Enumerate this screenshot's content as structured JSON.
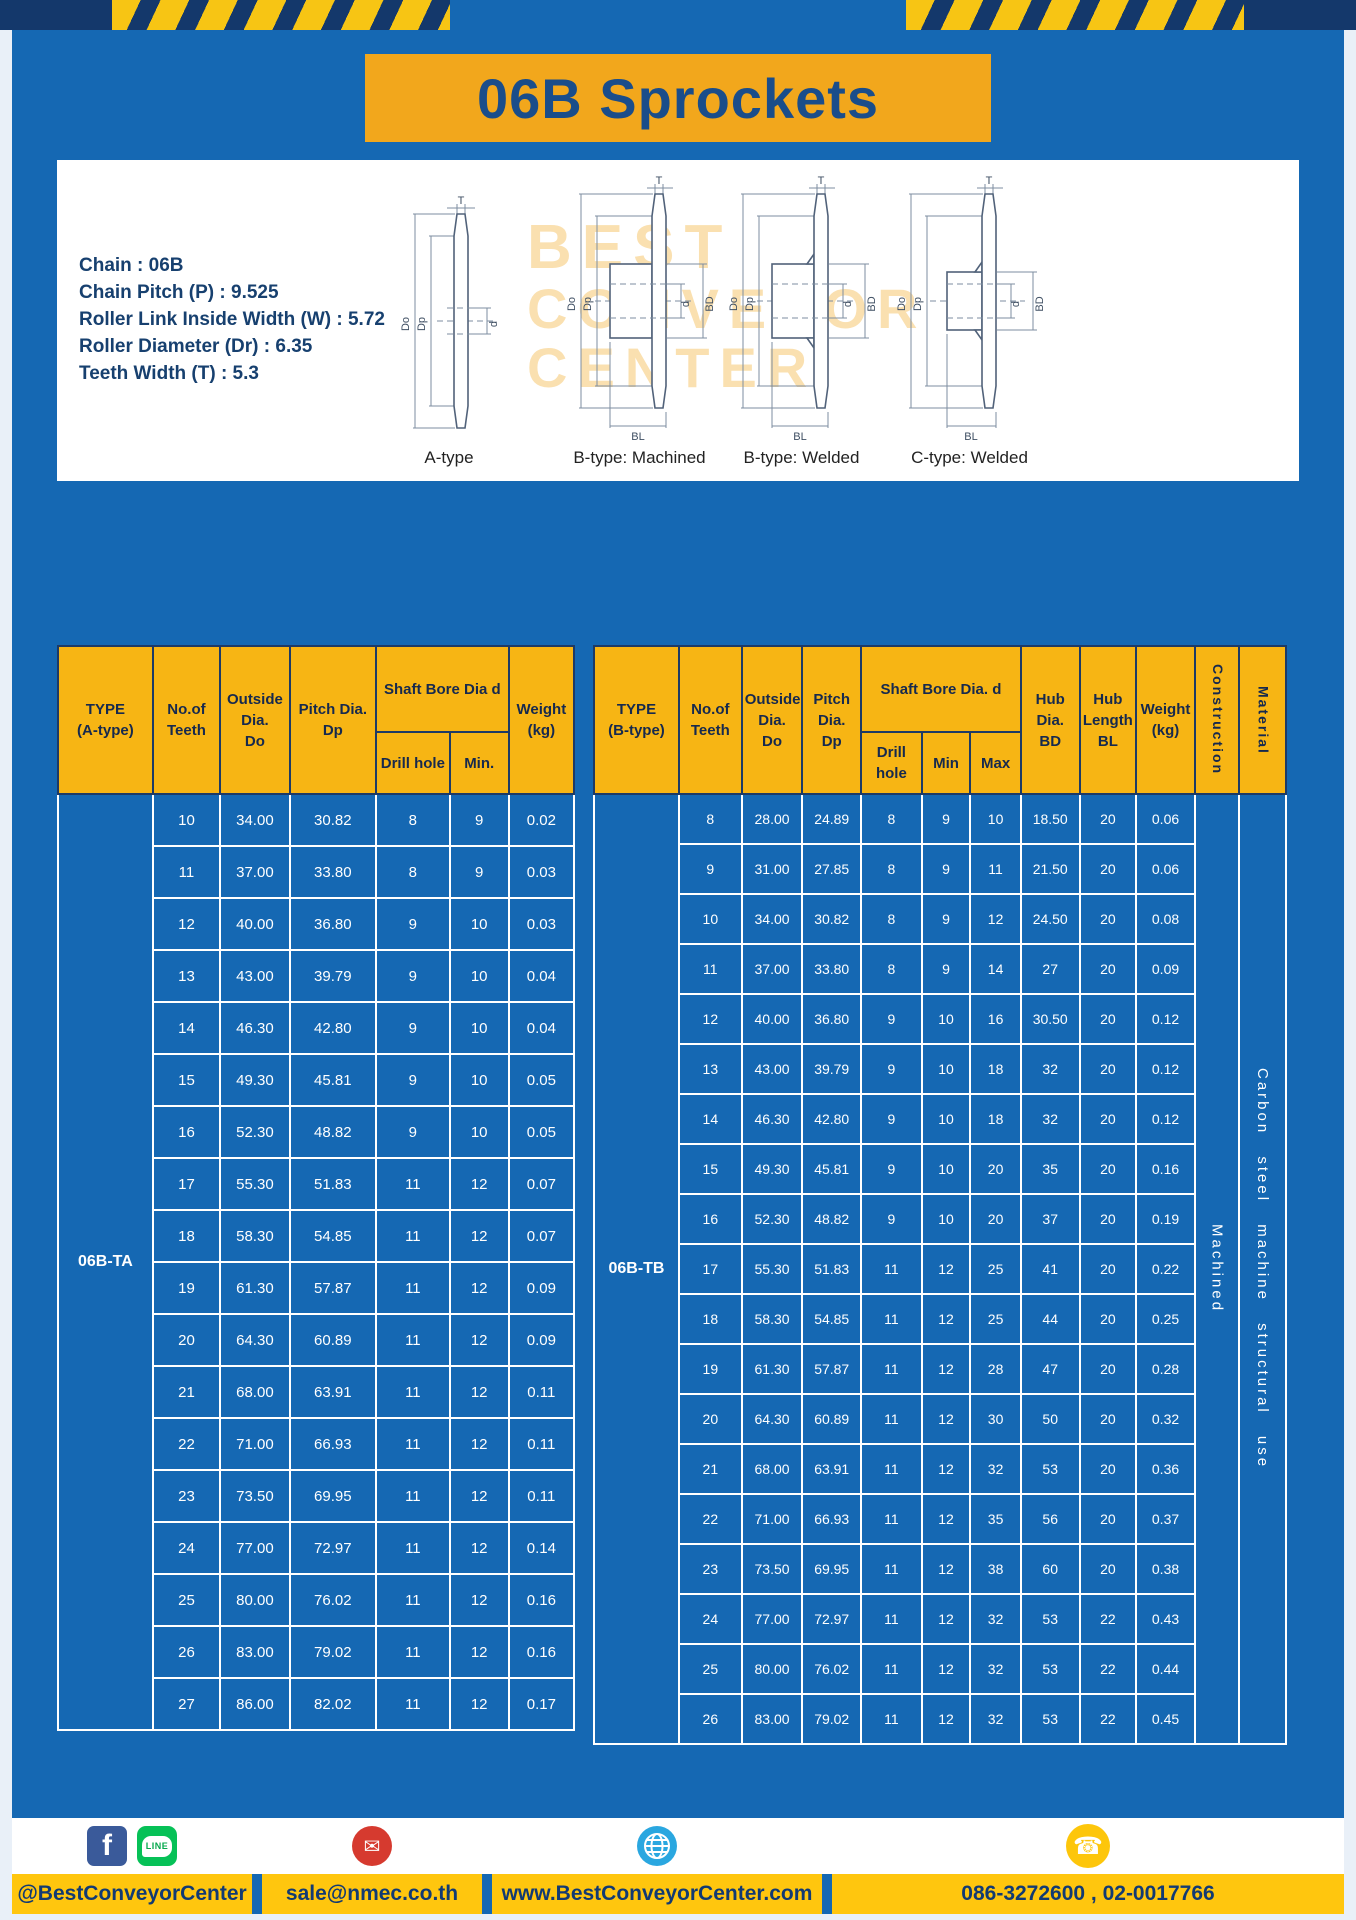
{
  "page": {
    "title": "06B Sprockets"
  },
  "specs": [
    "Chain  :  06B",
    "Chain Pitch (P)  :  9.525",
    "Roller Link Inside Width (W)  :  5.72",
    "Roller Diameter (Dr)  :  6.35",
    "Teeth Width (T)  :  5.3"
  ],
  "watermark": [
    "BEST",
    "CONVEYOR",
    "CENTER"
  ],
  "diagrams": [
    {
      "label": "A-type",
      "dims": {
        "t": "T",
        "do": "Do",
        "dp": "Dp",
        "d": "d"
      }
    },
    {
      "label": "B-type: Machined",
      "dims": {
        "t": "T",
        "do": "Do",
        "dp": "Dp",
        "d": "d",
        "bd": "BD",
        "bl": "BL"
      }
    },
    {
      "label": "B-type: Welded",
      "dims": {
        "t": "T",
        "do": "Do",
        "dp": "Dp",
        "d": "d",
        "bd": "BD",
        "bl": "BL"
      }
    },
    {
      "label": "C-type: Welded",
      "dims": {
        "t": "T",
        "do": "Do",
        "dp": "Dp",
        "d": "d",
        "bd": "BD",
        "bl": "BL"
      }
    }
  ],
  "table_a": {
    "headers": {
      "type": "TYPE\n(A-type)",
      "teeth": "No.of\nTeeth",
      "outside": "Outside\nDia.\nDo",
      "pitch": "Pitch Dia.\nDp",
      "shaft": "Shaft Bore Dia d",
      "drill": "Drill hole",
      "min": "Min.",
      "weight": "Weight\n(kg)"
    },
    "group": "06B-TA",
    "rows": [
      [
        "10",
        "34.00",
        "30.82",
        "8",
        "9",
        "0.02"
      ],
      [
        "11",
        "37.00",
        "33.80",
        "8",
        "9",
        "0.03"
      ],
      [
        "12",
        "40.00",
        "36.80",
        "9",
        "10",
        "0.03"
      ],
      [
        "13",
        "43.00",
        "39.79",
        "9",
        "10",
        "0.04"
      ],
      [
        "14",
        "46.30",
        "42.80",
        "9",
        "10",
        "0.04"
      ],
      [
        "15",
        "49.30",
        "45.81",
        "9",
        "10",
        "0.05"
      ],
      [
        "16",
        "52.30",
        "48.82",
        "9",
        "10",
        "0.05"
      ],
      [
        "17",
        "55.30",
        "51.83",
        "11",
        "12",
        "0.07"
      ],
      [
        "18",
        "58.30",
        "54.85",
        "11",
        "12",
        "0.07"
      ],
      [
        "19",
        "61.30",
        "57.87",
        "11",
        "12",
        "0.09"
      ],
      [
        "20",
        "64.30",
        "60.89",
        "11",
        "12",
        "0.09"
      ],
      [
        "21",
        "68.00",
        "63.91",
        "11",
        "12",
        "0.11"
      ],
      [
        "22",
        "71.00",
        "66.93",
        "11",
        "12",
        "0.11"
      ],
      [
        "23",
        "73.50",
        "69.95",
        "11",
        "12",
        "0.11"
      ],
      [
        "24",
        "77.00",
        "72.97",
        "11",
        "12",
        "0.14"
      ],
      [
        "25",
        "80.00",
        "76.02",
        "11",
        "12",
        "0.16"
      ],
      [
        "26",
        "83.00",
        "79.02",
        "11",
        "12",
        "0.16"
      ],
      [
        "27",
        "86.00",
        "82.02",
        "11",
        "12",
        "0.17"
      ]
    ]
  },
  "table_b": {
    "headers": {
      "type": "TYPE\n(B-type)",
      "teeth": "No.of\nTeeth",
      "outside": "Outside\nDia.\nDo",
      "pitch": "Pitch\nDia.\nDp",
      "shaft": "Shaft Bore Dia.  d",
      "drill": "Drill hole",
      "min": "Min",
      "max": "Max",
      "hub_dia": "Hub\nDia.\nBD",
      "hub_len": "Hub\nLength\nBL",
      "weight": "Weight\n(kg)",
      "construction": "Construction",
      "material": "Material"
    },
    "group": "06B-TB",
    "construction_value": "Machined",
    "material_value": "Carbon steel machine structural use",
    "rows": [
      [
        "8",
        "28.00",
        "24.89",
        "8",
        "9",
        "10",
        "18.50",
        "20",
        "0.06"
      ],
      [
        "9",
        "31.00",
        "27.85",
        "8",
        "9",
        "11",
        "21.50",
        "20",
        "0.06"
      ],
      [
        "10",
        "34.00",
        "30.82",
        "8",
        "9",
        "12",
        "24.50",
        "20",
        "0.08"
      ],
      [
        "11",
        "37.00",
        "33.80",
        "8",
        "9",
        "14",
        "27",
        "20",
        "0.09"
      ],
      [
        "12",
        "40.00",
        "36.80",
        "9",
        "10",
        "16",
        "30.50",
        "20",
        "0.12"
      ],
      [
        "13",
        "43.00",
        "39.79",
        "9",
        "10",
        "18",
        "32",
        "20",
        "0.12"
      ],
      [
        "14",
        "46.30",
        "42.80",
        "9",
        "10",
        "18",
        "32",
        "20",
        "0.12"
      ],
      [
        "15",
        "49.30",
        "45.81",
        "9",
        "10",
        "20",
        "35",
        "20",
        "0.16"
      ],
      [
        "16",
        "52.30",
        "48.82",
        "9",
        "10",
        "20",
        "37",
        "20",
        "0.19"
      ],
      [
        "17",
        "55.30",
        "51.83",
        "11",
        "12",
        "25",
        "41",
        "20",
        "0.22"
      ],
      [
        "18",
        "58.30",
        "54.85",
        "11",
        "12",
        "25",
        "44",
        "20",
        "0.25"
      ],
      [
        "19",
        "61.30",
        "57.87",
        "11",
        "12",
        "28",
        "47",
        "20",
        "0.28"
      ],
      [
        "20",
        "64.30",
        "60.89",
        "11",
        "12",
        "30",
        "50",
        "20",
        "0.32"
      ],
      [
        "21",
        "68.00",
        "63.91",
        "11",
        "12",
        "32",
        "53",
        "20",
        "0.36"
      ],
      [
        "22",
        "71.00",
        "66.93",
        "11",
        "12",
        "35",
        "56",
        "20",
        "0.37"
      ],
      [
        "23",
        "73.50",
        "69.95",
        "11",
        "12",
        "38",
        "60",
        "20",
        "0.38"
      ],
      [
        "24",
        "77.00",
        "72.97",
        "11",
        "12",
        "32",
        "53",
        "22",
        "0.43"
      ],
      [
        "25",
        "80.00",
        "76.02",
        "11",
        "12",
        "32",
        "53",
        "22",
        "0.44"
      ],
      [
        "26",
        "83.00",
        "79.02",
        "11",
        "12",
        "32",
        "53",
        "22",
        "0.45"
      ]
    ]
  },
  "footer": {
    "items": [
      {
        "label": "@BestConveyorCenter"
      },
      {
        "label": "sale@nmec.co.th"
      },
      {
        "label": "www.BestConveyorCenter.com"
      },
      {
        "label": "086-3272600 , 02-0017766"
      }
    ],
    "icons": {
      "facebook": {
        "glyph": "f"
      },
      "line": {
        "glyph": "LINE"
      },
      "email": {
        "glyph": "✉"
      },
      "phone": {
        "glyph": "☎"
      }
    }
  }
}
